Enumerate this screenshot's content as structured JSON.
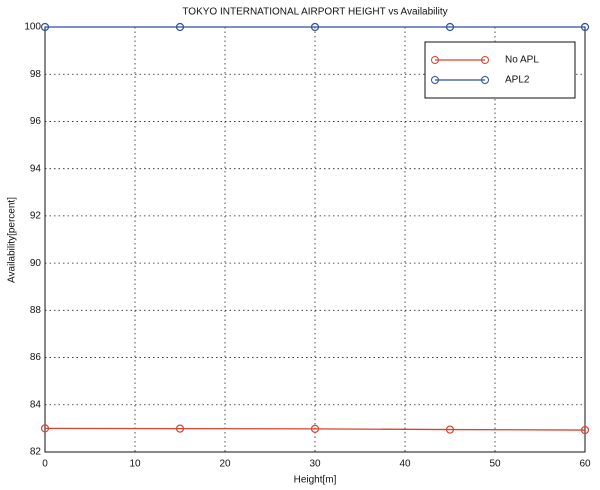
{
  "chart_data": {
    "type": "line",
    "title": "TOKYO INTERNATIONAL AIRPORT HEIGHT vs Availability",
    "x_label": "Height[m]",
    "y_label": "Availability[percent]",
    "x": [
      0,
      15,
      30,
      45,
      60
    ],
    "series": [
      {
        "name": "No APL",
        "color": "#d9432f",
        "values": [
          83.0,
          82.99,
          82.98,
          82.95,
          82.93
        ]
      },
      {
        "name": "APL2",
        "color": "#2b4fa8",
        "values": [
          100,
          100,
          100,
          100,
          100
        ]
      }
    ],
    "xlim": [
      0,
      60
    ],
    "xticks": [
      0,
      10,
      20,
      30,
      40,
      50,
      60
    ],
    "ylim": [
      82,
      100
    ],
    "yticks": [
      82,
      84,
      86,
      88,
      90,
      92,
      94,
      96,
      98,
      100
    ],
    "grid": true,
    "legend": "upper right"
  }
}
